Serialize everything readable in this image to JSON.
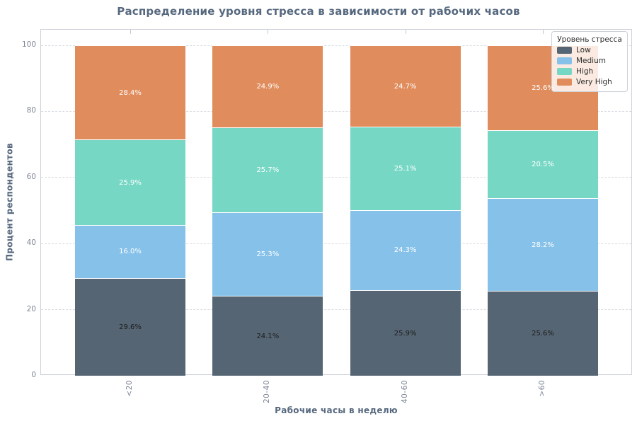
{
  "chart_data": {
    "type": "bar",
    "stacked": true,
    "orientation": "vertical",
    "title": "Распределение уровня стресса в зависимости от рабочих часов",
    "xlabel": "Рабочие часы в неделю",
    "ylabel": "Процент респондентов",
    "categories": [
      "<20",
      "20-40",
      "40-60",
      ">60"
    ],
    "series": [
      {
        "name": "Low",
        "color": "#566573",
        "label_color": "#1c1c1c",
        "values": [
          29.6,
          24.1,
          25.9,
          25.6
        ],
        "labels": [
          "29.6%",
          "24.1%",
          "25.9%",
          "25.6%"
        ]
      },
      {
        "name": "Medium",
        "color": "#85c1e9",
        "label_color": "#ffffff",
        "values": [
          16.0,
          25.3,
          24.3,
          28.2
        ],
        "labels": [
          "16.0%",
          "25.3%",
          "24.3%",
          "28.2%"
        ]
      },
      {
        "name": "High",
        "color": "#76d7c4",
        "label_color": "#ffffff",
        "values": [
          25.9,
          25.7,
          25.1,
          20.5
        ],
        "labels": [
          "25.9%",
          "25.7%",
          "25.1%",
          "20.5%"
        ]
      },
      {
        "name": "Very High",
        "color": "#e08c5c",
        "label_color": "#ffffff",
        "values": [
          28.4,
          24.9,
          24.7,
          25.6
        ],
        "labels": [
          "28.4%",
          "24.9%",
          "24.7%",
          "25.6%"
        ]
      }
    ],
    "yticks": [
      0,
      20,
      40,
      60,
      80,
      100
    ],
    "ylim": [
      0,
      104.7
    ],
    "grid": {
      "axis": "y",
      "style": "dashed",
      "color": "#d9dde2"
    },
    "legend": {
      "title": "Уровень стресса",
      "position": "upper right"
    }
  },
  "colors": {
    "title_text": "#56687e",
    "axis_label_text": "#56687e",
    "tick_label_text": "#7b8594",
    "spine": "#ccd1d8",
    "plot_background": "#ffffff",
    "figure_background": "#ffffff"
  }
}
